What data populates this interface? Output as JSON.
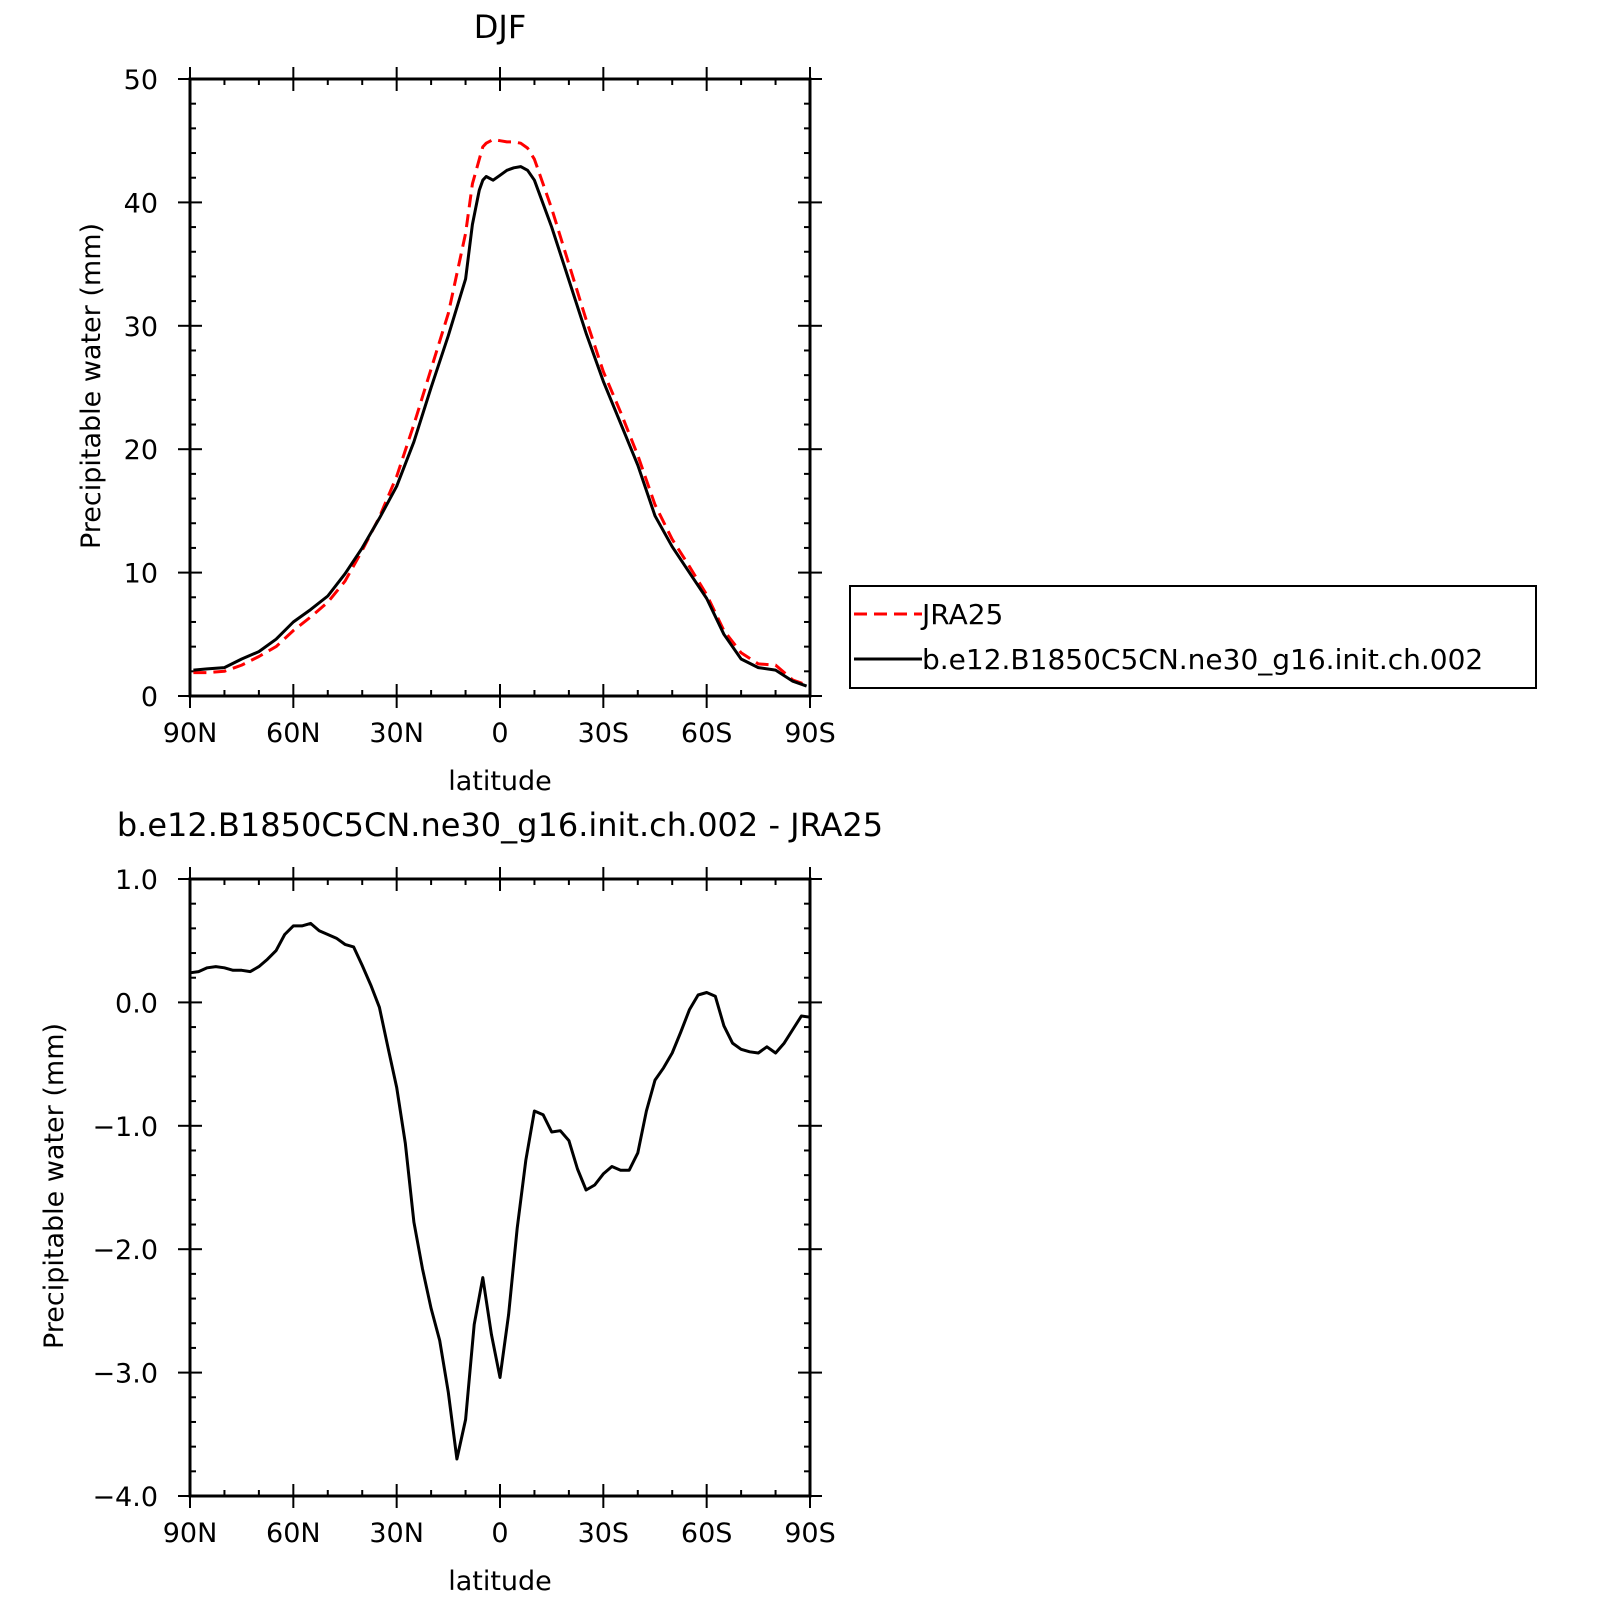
{
  "chart_data": [
    {
      "type": "line",
      "title": "DJF",
      "xlabel": "latitude",
      "ylabel": "Precipitable water (mm)",
      "x_tick_labels": [
        "90N",
        "60N",
        "30N",
        "0",
        "30S",
        "60S",
        "90S"
      ],
      "y_tick_labels": [
        "0",
        "10",
        "20",
        "30",
        "40",
        "50"
      ],
      "xlim": [
        -90,
        90
      ],
      "ylim": [
        0,
        50
      ],
      "legend_position": "right",
      "series": [
        {
          "name": "JRA25",
          "color": "#ff0000",
          "style": "dashed",
          "x": [
            -89,
            -85,
            -80,
            -75,
            -70,
            -65,
            -60,
            -55,
            -50,
            -45,
            -40,
            -35,
            -30,
            -25,
            -20,
            -15,
            -10,
            -8,
            -6,
            -5,
            -4,
            -2,
            0,
            2,
            4,
            6,
            8,
            10,
            15,
            20,
            25,
            30,
            35,
            40,
            45,
            50,
            55,
            60,
            65,
            70,
            75,
            80,
            85,
            89
          ],
          "y": [
            1.9,
            1.9,
            2.0,
            2.5,
            3.2,
            4.0,
            5.3,
            6.4,
            7.6,
            9.3,
            11.8,
            14.5,
            17.8,
            22.0,
            26.5,
            31.0,
            37.5,
            41.5,
            43.5,
            44.5,
            44.8,
            45.1,
            45.0,
            44.9,
            44.9,
            44.8,
            44.4,
            43.5,
            39.5,
            35.0,
            30.5,
            26.3,
            23.0,
            19.5,
            15.5,
            12.7,
            10.5,
            8.2,
            5.3,
            3.5,
            2.6,
            2.5,
            1.3,
            0.9
          ]
        },
        {
          "name": "b.e12.B1850C5CN.ne30_g16.init.ch.002",
          "color": "#000000",
          "style": "solid",
          "x": [
            -89,
            -85,
            -80,
            -75,
            -70,
            -65,
            -60,
            -55,
            -50,
            -45,
            -40,
            -35,
            -30,
            -25,
            -20,
            -15,
            -10,
            -8,
            -6,
            -5,
            -4,
            -2,
            0,
            2,
            4,
            6,
            8,
            10,
            15,
            20,
            25,
            30,
            35,
            40,
            45,
            50,
            55,
            60,
            65,
            70,
            75,
            80,
            85,
            89
          ],
          "y": [
            2.1,
            2.2,
            2.3,
            3.0,
            3.6,
            4.6,
            6.0,
            7.0,
            8.1,
            9.9,
            12.0,
            14.4,
            17.0,
            20.6,
            25.0,
            29.2,
            33.8,
            38.2,
            41.0,
            41.8,
            42.1,
            41.8,
            42.2,
            42.6,
            42.8,
            42.9,
            42.6,
            41.8,
            38.0,
            33.7,
            29.4,
            25.5,
            22.1,
            18.7,
            14.6,
            12.1,
            10.0,
            7.9,
            5.0,
            3.0,
            2.3,
            2.1,
            1.2,
            0.8
          ]
        }
      ]
    },
    {
      "type": "line",
      "title": "b.e12.B1850C5CN.ne30_g16.init.ch.002 - JRA25",
      "xlabel": "latitude",
      "ylabel": "Precipitable water (mm)",
      "x_tick_labels": [
        "90N",
        "60N",
        "30N",
        "0",
        "30S",
        "60S",
        "90S"
      ],
      "y_tick_labels": [
        "-4.0",
        "-3.0",
        "-2.0",
        "-1.0",
        "0.0",
        "1.0"
      ],
      "xlim": [
        -90,
        90
      ],
      "ylim": [
        -4.0,
        1.0
      ],
      "series": [
        {
          "color": "#000000",
          "style": "solid",
          "x": [
            -90,
            -87.5,
            -85,
            -82.5,
            -80,
            -77.5,
            -75,
            -72.5,
            -70,
            -67.5,
            -65,
            -62.5,
            -60,
            -57.5,
            -55,
            -52.5,
            -50,
            -47.5,
            -45,
            -42.5,
            -40,
            -37.5,
            -35,
            -32.5,
            -30,
            -27.5,
            -25,
            -22.5,
            -20,
            -17.5,
            -15,
            -12.5,
            -10,
            -7.5,
            -5,
            -2.5,
            0,
            2.5,
            5,
            7.5,
            10,
            12.5,
            15,
            17.5,
            20,
            22.5,
            25,
            27.5,
            30,
            32.5,
            35,
            37.5,
            40,
            42.5,
            45,
            47.5,
            50,
            52.5,
            55,
            57.5,
            60,
            62.5,
            65,
            67.5,
            70,
            72.5,
            75,
            77.5,
            80,
            82.5,
            85,
            87.5,
            90
          ],
          "y": [
            0.24,
            0.25,
            0.28,
            0.29,
            0.28,
            0.26,
            0.26,
            0.25,
            0.29,
            0.35,
            0.42,
            0.55,
            0.62,
            0.62,
            0.64,
            0.58,
            0.55,
            0.52,
            0.47,
            0.45,
            0.3,
            0.14,
            -0.04,
            -0.37,
            -0.69,
            -1.14,
            -1.78,
            -2.16,
            -2.48,
            -2.74,
            -3.16,
            -3.7,
            -3.38,
            -2.61,
            -2.23,
            -2.69,
            -3.04,
            -2.53,
            -1.83,
            -1.28,
            -0.88,
            -0.91,
            -1.05,
            -1.04,
            -1.12,
            -1.35,
            -1.52,
            -1.48,
            -1.39,
            -1.33,
            -1.36,
            -1.36,
            -1.22,
            -0.88,
            -0.63,
            -0.53,
            -0.41,
            -0.24,
            -0.06,
            0.06,
            0.08,
            0.05,
            -0.19,
            -0.33,
            -0.38,
            -0.4,
            -0.41,
            -0.36,
            -0.41,
            -0.33,
            -0.22,
            -0.11,
            -0.12
          ]
        }
      ]
    }
  ],
  "legend": {
    "items": [
      {
        "label": "JRA25",
        "color": "#ff0000",
        "style": "dashed"
      },
      {
        "label": "b.e12.B1850C5CN.ne30_g16.init.ch.002",
        "color": "#000000",
        "style": "solid"
      }
    ]
  }
}
